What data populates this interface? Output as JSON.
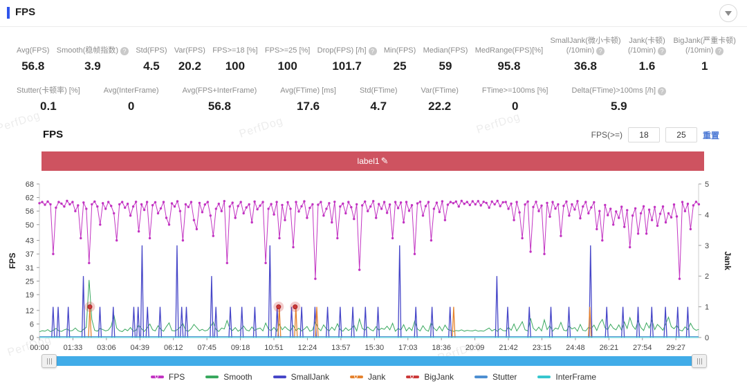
{
  "header": {
    "title": "FPS"
  },
  "collapse_icon": "triangle-down",
  "watermark": {
    "text": "PerfDog"
  },
  "stats": {
    "rows": [
      {
        "cells": [
          {
            "lines": [
              "Avg(FPS)"
            ],
            "help": false,
            "value": "56.8"
          },
          {
            "lines": [
              "Smooth(稳帧指数)"
            ],
            "help": true,
            "value": "3.9"
          },
          {
            "lines": [
              "Std(FPS)"
            ],
            "help": false,
            "value": "4.5"
          },
          {
            "lines": [
              "Var(FPS)"
            ],
            "help": false,
            "value": "20.2"
          },
          {
            "lines": [
              "FPS>=18 [%]"
            ],
            "help": false,
            "value": "100"
          },
          {
            "lines": [
              "FPS>=25 [%]"
            ],
            "help": false,
            "value": "100"
          },
          {
            "lines": [
              "Drop(FPS) [/h]"
            ],
            "help": true,
            "value": "101.7"
          },
          {
            "lines": [
              "Min(FPS)"
            ],
            "help": false,
            "value": "25"
          },
          {
            "lines": [
              "Median(FPS)"
            ],
            "help": false,
            "value": "59"
          },
          {
            "lines": [
              "MedRange(FPS)[%]"
            ],
            "help": false,
            "value": "95.8"
          },
          {
            "lines": [
              "SmallJank(微小卡顿)",
              "(/10min)"
            ],
            "help": true,
            "value": "36.8"
          },
          {
            "lines": [
              "Jank(卡顿)",
              "(/10min)"
            ],
            "help": true,
            "value": "1.6"
          },
          {
            "lines": [
              "BigJank(严重卡顿)",
              "(/10min)"
            ],
            "help": true,
            "value": "1"
          }
        ]
      },
      {
        "cells": [
          {
            "lines": [
              "Stutter(卡顿率) [%]"
            ],
            "help": false,
            "value": "0.1"
          },
          {
            "lines": [
              "Avg(InterFrame)"
            ],
            "help": false,
            "value": "0"
          },
          {
            "lines": [
              "Avg(FPS+InterFrame)"
            ],
            "help": false,
            "value": "56.8"
          },
          {
            "lines": [
              "Avg(FTime) [ms]"
            ],
            "help": false,
            "value": "17.6"
          },
          {
            "lines": [
              "Std(FTime)"
            ],
            "help": false,
            "value": "4.7"
          },
          {
            "lines": [
              "Var(FTime)"
            ],
            "help": false,
            "value": "22.2"
          },
          {
            "lines": [
              "FTime>=100ms [%]"
            ],
            "help": false,
            "value": "0"
          },
          {
            "lines": [
              "Delta(FTime)>100ms [/h]"
            ],
            "help": true,
            "value": "5.9"
          }
        ]
      }
    ]
  },
  "section": {
    "title": "FPS"
  },
  "fps_filter": {
    "label": "FPS(>=)",
    "low": "18",
    "high": "25",
    "reset": "重置"
  },
  "chart_data": {
    "type": "line",
    "title": "label1",
    "banner_color": "#CE5360",
    "x_axis": {
      "unit": "mm:ss",
      "max_s": 1830,
      "tick_interval_s": 93,
      "tick_labels": [
        "00:00",
        "01:33",
        "03:06",
        "04:39",
        "06:12",
        "07:45",
        "09:18",
        "10:51",
        "12:24",
        "13:57",
        "15:30",
        "17:03",
        "18:36",
        "20:09",
        "21:42",
        "23:15",
        "24:48",
        "26:21",
        "27:54",
        "29:27"
      ]
    },
    "y_left": {
      "label": "FPS",
      "max": 68,
      "ticks": [
        0,
        6,
        12,
        19,
        25,
        31,
        37,
        43,
        50,
        56,
        62,
        68
      ]
    },
    "y_right": {
      "label": "Jank",
      "max": 5,
      "ticks": [
        0,
        1,
        2,
        3,
        4,
        5
      ]
    },
    "sample_interval_s": 7.66,
    "series": [
      {
        "name": "FPS",
        "color": "#C233C2",
        "axis": "left",
        "type": "line-markers",
        "values": [
          59.5,
          60,
          58.8,
          60.2,
          59,
          37,
          57.5,
          60,
          59.3,
          58,
          60.5,
          59,
          60,
          56,
          58.5,
          44,
          59.8,
          57,
          33,
          59,
          60.2,
          58,
          50,
          59.5,
          57,
          60,
          58.3,
          55,
          43,
          59,
          60,
          57.5,
          59.2,
          54,
          58,
          60.1,
          47,
          59,
          56.5,
          60,
          44,
          58.6,
          59.9,
          55,
          57.2,
          60,
          53,
          50,
          59.4,
          58,
          60.3,
          56,
          43,
          59,
          57.8,
          60,
          52,
          48,
          59.6,
          55.5,
          58.9,
          60,
          54,
          45,
          57,
          59.2,
          56,
          60.4,
          33,
          58,
          59.7,
          53,
          58.2,
          60,
          55,
          57.6,
          59,
          51,
          60.2,
          56.8,
          58.4,
          60,
          33,
          57,
          59.1,
          54.5,
          60,
          44,
          58.7,
          52,
          59.9,
          57,
          40,
          60,
          55.8,
          58.1,
          60.3,
          53,
          57.4,
          59,
          26,
          58.8,
          60,
          54,
          57,
          59.5,
          51,
          60.1,
          44,
          58,
          59.3,
          55,
          60,
          57.7,
          52.5,
          59,
          30,
          58.5,
          60.2,
          56,
          58,
          60.4,
          53,
          59.1,
          57,
          60,
          55.2,
          58.9,
          44,
          60,
          57.3,
          59.8,
          51,
          60,
          56.1,
          58.6,
          37,
          59.4,
          60.1,
          54,
          58.2,
          60,
          43,
          57,
          59.7,
          55.6,
          60.3,
          52,
          58.8,
          60,
          59.5,
          60.2,
          58,
          60.5,
          59.2,
          60,
          58.7,
          60.3,
          59,
          60.4,
          58.5,
          60.1,
          59.6,
          57.5,
          60.2,
          59,
          60.5,
          58.2,
          59.9,
          60,
          57,
          59.3,
          52,
          60,
          55.4,
          44,
          58.9,
          60.2,
          38,
          57.8,
          60.1,
          56,
          58.4,
          37,
          59.6,
          53.5,
          60,
          57.1,
          59,
          45,
          58.3,
          60.2,
          54,
          59,
          56.7,
          60.4,
          52.8,
          58,
          60,
          55,
          57.6,
          59.9,
          48,
          56,
          43,
          58.7,
          54.2,
          57,
          50,
          55.8,
          53,
          57.9,
          49,
          56.4,
          40,
          54,
          57.2,
          46,
          55,
          58.1,
          46,
          56.6,
          52,
          57.8,
          49.5,
          54.8,
          58,
          51,
          55,
          53.2,
          58.9,
          53.6,
          26,
          60,
          56,
          59.2,
          48,
          58.5,
          60.1,
          59
        ]
      },
      {
        "name": "Smooth",
        "color": "#39A85E",
        "axis": "left",
        "type": "line",
        "values": [
          2.5,
          3,
          2.8,
          3.5,
          2.6,
          3.2,
          4,
          3,
          2.7,
          3.4,
          3.8,
          2.9,
          3.1,
          4.2,
          3,
          2.5,
          3.6,
          4.5,
          25.5,
          8,
          3.2,
          2.8,
          4,
          3.5,
          2.9,
          3.3,
          5,
          10,
          4.2,
          3,
          2.6,
          3.7,
          3,
          4.4,
          2.8,
          3.2,
          5.5,
          3.9,
          2.7,
          4.1,
          6,
          3.4,
          2.9,
          5.2,
          3.6,
          2.8,
          4.8,
          6.5,
          3.1,
          2.9,
          3.5,
          4.6,
          6.2,
          3.2,
          2.8,
          3.9,
          5.8,
          4.4,
          3,
          3.6,
          2.9,
          3.3,
          4.9,
          6.8,
          3.5,
          2.7,
          4.2,
          3.8,
          7.5,
          4,
          3.1,
          4.4,
          2.8,
          3.6,
          5.1,
          3.3,
          2.9,
          4.7,
          3.2,
          3.8,
          4.2,
          2.9,
          6.4,
          3.7,
          3,
          4.5,
          2.8,
          5.9,
          3.4,
          4.8,
          3.6,
          2.8,
          5.3,
          3.1,
          4.1,
          2.9,
          3.7,
          4.9,
          2.8,
          3.3,
          7,
          4.2,
          3,
          5.6,
          3.8,
          2.9,
          4.6,
          3.2,
          6.1,
          3.5,
          2.8,
          4.3,
          3.1,
          3.9,
          5.4,
          2.9,
          8.2,
          4,
          3.3,
          4.7,
          3.5,
          2.9,
          4.8,
          3.2,
          4.1,
          3.6,
          5,
          3.4,
          6.3,
          2.8,
          4,
          3.3,
          5.7,
          2.9,
          4.4,
          3.1,
          7.2,
          3.8,
          2.9,
          5.2,
          3.4,
          2.8,
          6.6,
          4.1,
          3,
          4.9,
          2.9,
          5.5,
          3.6,
          3.2,
          2.7,
          3.1,
          2.9,
          3.4,
          2.8,
          3.2,
          3,
          2.9,
          3.3,
          2.8,
          3,
          2.8,
          3.5,
          4.2,
          2.9,
          3.6,
          2.8,
          4,
          3.1,
          2.9,
          4.5,
          3.2,
          6,
          2.9,
          4.8,
          7,
          3.4,
          2.9,
          8.5,
          4.1,
          3,
          4.6,
          2.9,
          7.8,
          3.5,
          5.3,
          2.8,
          4.2,
          3.7,
          6.7,
          3.3,
          2.9,
          5.1,
          3.8,
          4.4,
          2.8,
          5.8,
          3.2,
          2.9,
          4.5,
          4,
          5.5,
          3.1,
          6.2,
          8,
          4.3,
          3.5,
          5.9,
          4.1,
          3.4,
          5.6,
          3.2,
          6.9,
          4,
          8.8,
          5.2,
          3.6,
          7.4,
          4.4,
          3.1,
          6.5,
          4.2,
          7.7,
          3.5,
          5.8,
          4.6,
          3.2,
          6.1,
          9,
          4.8,
          3.9,
          5.4,
          3.3,
          2.9,
          4.7,
          3.5,
          6.3,
          4,
          3.2,
          3.6
        ]
      },
      {
        "name": "SmallJank",
        "color": "#4646C8",
        "axis": "right",
        "type": "spikes",
        "points": [
          [
            38,
            1
          ],
          [
            52,
            1
          ],
          [
            80,
            1
          ],
          [
            122,
            2
          ],
          [
            168,
            1
          ],
          [
            205,
            1
          ],
          [
            262,
            1
          ],
          [
            274,
            1
          ],
          [
            285,
            3
          ],
          [
            300,
            1
          ],
          [
            335,
            1
          ],
          [
            382,
            3
          ],
          [
            395,
            1
          ],
          [
            408,
            1
          ],
          [
            478,
            2
          ],
          [
            490,
            1
          ],
          [
            530,
            1
          ],
          [
            562,
            1
          ],
          [
            598,
            1
          ],
          [
            640,
            3
          ],
          [
            660,
            1
          ],
          [
            700,
            1
          ],
          [
            728,
            1
          ],
          [
            765,
            1
          ],
          [
            800,
            1
          ],
          [
            835,
            1
          ],
          [
            870,
            1
          ],
          [
            905,
            1
          ],
          [
            940,
            1
          ],
          [
            1000,
            3
          ],
          [
            1045,
            1
          ],
          [
            1090,
            1
          ],
          [
            1140,
            1
          ],
          [
            1270,
            2
          ],
          [
            1300,
            1
          ],
          [
            1360,
            1
          ],
          [
            1420,
            1
          ],
          [
            1470,
            1
          ],
          [
            1530,
            3
          ],
          [
            1575,
            1
          ],
          [
            1620,
            1
          ],
          [
            1662,
            1
          ],
          [
            1700,
            1
          ],
          [
            1738,
            1
          ],
          [
            1772,
            1
          ],
          [
            1800,
            1
          ]
        ]
      },
      {
        "name": "Jank",
        "color": "#E5822E",
        "axis": "right",
        "type": "spikes",
        "points": [
          [
            140,
            1
          ],
          [
            666,
            1
          ],
          [
            712,
            1
          ],
          [
            770,
            1
          ],
          [
            1150,
            1
          ],
          [
            1528,
            1
          ]
        ]
      },
      {
        "name": "BigJank",
        "color": "#CC3939",
        "axis": "right",
        "type": "dots",
        "points": [
          [
            140,
            1
          ],
          [
            664,
            1
          ],
          [
            710,
            1
          ]
        ]
      },
      {
        "name": "Stutter",
        "color": "#4D8FD1",
        "axis": "right",
        "type": "const-line",
        "const_value": 0.03
      },
      {
        "name": "InterFrame",
        "color": "#36C6CE",
        "axis": "right",
        "type": "const-line",
        "const_value": 0.0
      }
    ],
    "legend": [
      {
        "label": "FPS",
        "color": "#C233C2",
        "dot": true
      },
      {
        "label": "Smooth",
        "color": "#39A85E",
        "dot": false
      },
      {
        "label": "SmallJank",
        "color": "#4646C8",
        "dot": false
      },
      {
        "label": "Jank",
        "color": "#E5822E",
        "dot": true
      },
      {
        "label": "BigJank",
        "color": "#CC3939",
        "dot": true
      },
      {
        "label": "Stutter",
        "color": "#4D8FD1",
        "dot": false
      },
      {
        "label": "InterFrame",
        "color": "#36C6CE",
        "dot": false
      }
    ]
  }
}
